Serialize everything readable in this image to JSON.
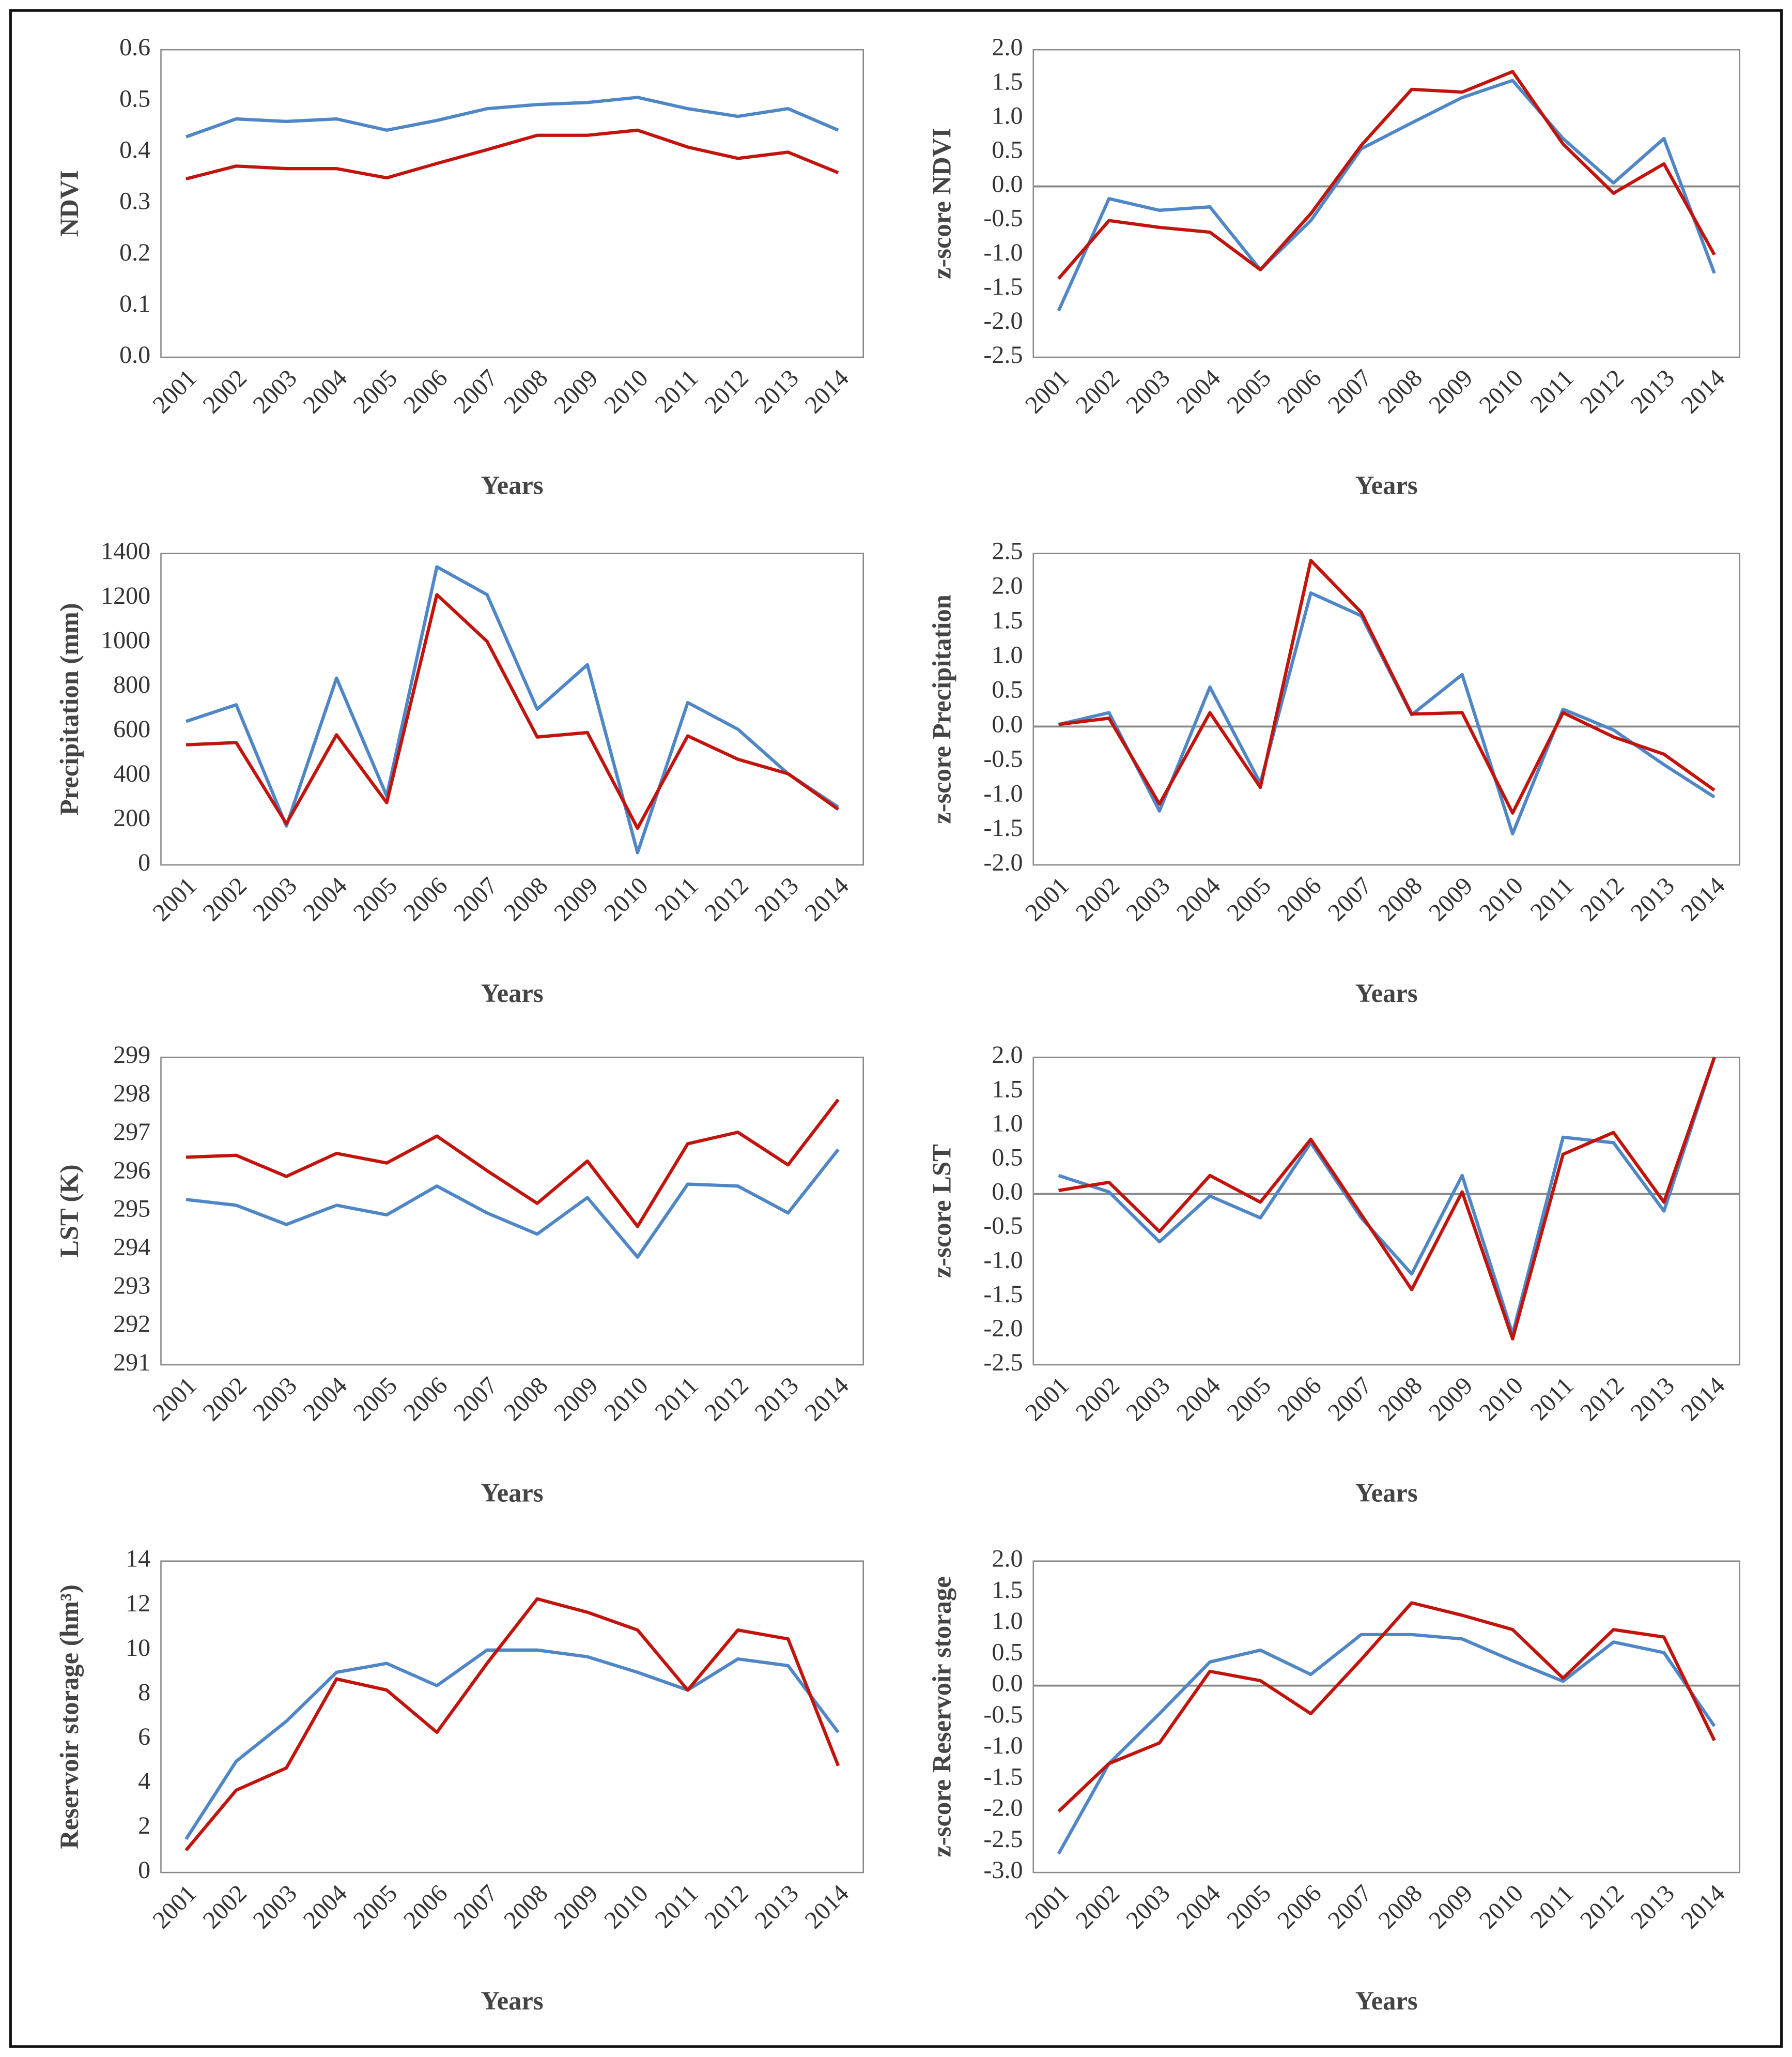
{
  "chart_data": [
    {
      "type": "line",
      "ylabel": "NDVI",
      "xlabel": "Years",
      "categories": [
        "2001",
        "2002",
        "2003",
        "2004",
        "2005",
        "2006",
        "2007",
        "2008",
        "2009",
        "2010",
        "2011",
        "2012",
        "2013",
        "2014"
      ],
      "ylim": [
        0,
        0.6
      ],
      "yticks": [
        {
          "value": 0,
          "label": "0.0"
        },
        0.1,
        0.2,
        0.3,
        0.4,
        0.5,
        0.6
      ],
      "zero_line": false,
      "series": [
        {
          "color": "#4f86c6",
          "values": [
            0.43,
            0.465,
            0.46,
            0.465,
            0.443,
            0.462,
            0.485,
            0.493,
            0.497,
            0.507,
            0.485,
            0.47,
            0.485,
            0.443
          ]
        },
        {
          "color": "#c0140c",
          "values": [
            0.348,
            0.373,
            0.368,
            0.368,
            0.35,
            0.378,
            0.405,
            0.433,
            0.433,
            0.443,
            0.41,
            0.388,
            0.4,
            0.36
          ]
        }
      ]
    },
    {
      "type": "line",
      "ylabel": "z-score NDVI",
      "xlabel": "Years",
      "categories": [
        "2001",
        "2002",
        "2003",
        "2004",
        "2005",
        "2006",
        "2007",
        "2008",
        "2009",
        "2010",
        "2011",
        "2012",
        "2013",
        "2014"
      ],
      "ylim": [
        -2.5,
        2.0
      ],
      "yticks": [
        -2.5,
        {
          "value": -2,
          "label": "-2.0"
        },
        -1.5,
        {
          "value": -1,
          "label": "-1.0"
        },
        -0.5,
        {
          "value": 0,
          "label": "0.0"
        },
        0.5,
        {
          "value": 1,
          "label": "1.0"
        },
        1.5,
        {
          "value": 2,
          "label": "2.0"
        }
      ],
      "zero_line": true,
      "series": [
        {
          "color": "#4f86c6",
          "values": [
            -1.82,
            -0.18,
            -0.35,
            -0.3,
            -1.22,
            -0.5,
            0.55,
            0.93,
            1.3,
            1.55,
            0.7,
            0.05,
            0.7,
            -1.27
          ]
        },
        {
          "color": "#c0140c",
          "values": [
            -1.35,
            -0.5,
            -0.6,
            -0.67,
            -1.22,
            -0.4,
            0.6,
            1.42,
            1.38,
            1.68,
            0.62,
            -0.1,
            0.33,
            -1.0
          ]
        }
      ]
    },
    {
      "type": "line",
      "ylabel": "Precipitation (mm)",
      "xlabel": "Years",
      "categories": [
        "2001",
        "2002",
        "2003",
        "2004",
        "2005",
        "2006",
        "2007",
        "2008",
        "2009",
        "2010",
        "2011",
        "2012",
        "2013",
        "2014"
      ],
      "ylim": [
        0,
        1400
      ],
      "yticks": [
        0,
        200,
        400,
        600,
        800,
        1000,
        1200,
        1400
      ],
      "zero_line": false,
      "series": [
        {
          "color": "#4f86c6",
          "values": [
            645,
            720,
            175,
            840,
            310,
            1340,
            1215,
            700,
            900,
            55,
            730,
            610,
            410,
            260
          ]
        },
        {
          "color": "#c0140c",
          "values": [
            540,
            550,
            185,
            585,
            280,
            1215,
            1005,
            575,
            595,
            165,
            580,
            475,
            410,
            250
          ]
        }
      ]
    },
    {
      "type": "line",
      "ylabel": "z-score Precipitation",
      "xlabel": "Years",
      "categories": [
        "2001",
        "2002",
        "2003",
        "2004",
        "2005",
        "2006",
        "2007",
        "2008",
        "2009",
        "2010",
        "2011",
        "2012",
        "2013",
        "2014"
      ],
      "ylim": [
        -2.0,
        2.5
      ],
      "yticks": [
        {
          "value": -2,
          "label": "-2.0"
        },
        -1.5,
        {
          "value": -1,
          "label": "-1.0"
        },
        -0.5,
        {
          "value": 0,
          "label": "0.0"
        },
        0.5,
        {
          "value": 1,
          "label": "1.0"
        },
        1.5,
        {
          "value": 2,
          "label": "2.0"
        },
        2.5
      ],
      "zero_line": true,
      "series": [
        {
          "color": "#4f86c6",
          "values": [
            0.03,
            0.2,
            -1.22,
            0.57,
            -0.82,
            1.93,
            1.6,
            0.17,
            0.75,
            -1.55,
            0.25,
            -0.05,
            -0.55,
            -1.02
          ]
        },
        {
          "color": "#c0140c",
          "values": [
            0.03,
            0.12,
            -1.12,
            0.2,
            -0.88,
            2.4,
            1.65,
            0.18,
            0.2,
            -1.25,
            0.2,
            -0.15,
            -0.4,
            -0.92
          ]
        }
      ]
    },
    {
      "type": "line",
      "ylabel": "LST (K)",
      "xlabel": "Years",
      "categories": [
        "2001",
        "2002",
        "2003",
        "2004",
        "2005",
        "2006",
        "2007",
        "2008",
        "2009",
        "2010",
        "2011",
        "2012",
        "2013",
        "2014"
      ],
      "ylim": [
        291,
        299
      ],
      "yticks": [
        291,
        292,
        293,
        294,
        295,
        296,
        297,
        298,
        299
      ],
      "zero_line": false,
      "series": [
        {
          "color": "#4f86c6",
          "values": [
            295.3,
            295.15,
            294.65,
            295.15,
            294.9,
            295.65,
            294.95,
            294.4,
            295.35,
            293.8,
            295.7,
            295.65,
            294.95,
            296.6
          ]
        },
        {
          "color": "#c0140c",
          "values": [
            296.4,
            296.45,
            295.9,
            296.5,
            296.25,
            296.95,
            296.05,
            295.2,
            296.3,
            294.6,
            296.75,
            297.05,
            296.2,
            297.9
          ]
        }
      ]
    },
    {
      "type": "line",
      "ylabel": "z-score LST",
      "xlabel": "Years",
      "categories": [
        "2001",
        "2002",
        "2003",
        "2004",
        "2005",
        "2006",
        "2007",
        "2008",
        "2009",
        "2010",
        "2011",
        "2012",
        "2013",
        "2014"
      ],
      "ylim": [
        -2.5,
        2.0
      ],
      "yticks": [
        -2.5,
        {
          "value": -2,
          "label": "-2.0"
        },
        -1.5,
        {
          "value": -1,
          "label": "-1.0"
        },
        -0.5,
        {
          "value": 0,
          "label": "0.0"
        },
        0.5,
        {
          "value": 1,
          "label": "1.0"
        },
        1.5,
        {
          "value": 2,
          "label": "2.0"
        }
      ],
      "zero_line": true,
      "series": [
        {
          "color": "#4f86c6",
          "values": [
            0.27,
            0.03,
            -0.7,
            -0.03,
            -0.35,
            0.75,
            -0.35,
            -1.17,
            0.27,
            -2.05,
            0.83,
            0.75,
            -0.25,
            2.0
          ]
        },
        {
          "color": "#c0140c",
          "values": [
            0.05,
            0.17,
            -0.55,
            0.27,
            -0.12,
            0.8,
            -0.3,
            -1.4,
            0.03,
            -2.12,
            0.58,
            0.9,
            -0.12,
            2.0
          ]
        }
      ]
    },
    {
      "type": "line",
      "ylabel": "Reservoir storage (hm³)",
      "xlabel": "Years",
      "categories": [
        "2001",
        "2002",
        "2003",
        "2004",
        "2005",
        "2006",
        "2007",
        "2008",
        "2009",
        "2010",
        "2011",
        "2012",
        "2013",
        "2014"
      ],
      "ylim": [
        0,
        14
      ],
      "yticks": [
        0,
        2,
        4,
        6,
        8,
        10,
        12,
        14
      ],
      "zero_line": false,
      "series": [
        {
          "color": "#4f86c6",
          "values": [
            1.5,
            5.0,
            6.8,
            9.0,
            9.4,
            8.4,
            10.0,
            10.0,
            9.7,
            9.0,
            8.2,
            9.6,
            9.3,
            6.3
          ]
        },
        {
          "color": "#c0140c",
          "values": [
            1.0,
            3.7,
            4.7,
            8.7,
            8.2,
            6.3,
            9.4,
            12.3,
            11.7,
            10.9,
            8.2,
            10.9,
            10.5,
            4.8
          ]
        }
      ]
    },
    {
      "type": "line",
      "ylabel": "z-score Reservoir storage",
      "xlabel": "Years",
      "categories": [
        "2001",
        "2002",
        "2003",
        "2004",
        "2005",
        "2006",
        "2007",
        "2008",
        "2009",
        "2010",
        "2011",
        "2012",
        "2013",
        "2014"
      ],
      "ylim": [
        -3.0,
        2.0
      ],
      "yticks": [
        {
          "value": -3,
          "label": "-3.0"
        },
        -2.5,
        {
          "value": -2,
          "label": "-2.0"
        },
        -1.5,
        {
          "value": -1,
          "label": "-1.0"
        },
        -0.5,
        {
          "value": 0,
          "label": "0.0"
        },
        0.5,
        {
          "value": 1,
          "label": "1.0"
        },
        1.5,
        {
          "value": 2,
          "label": "2.0"
        }
      ],
      "zero_line": true,
      "series": [
        {
          "color": "#4f86c6",
          "values": [
            -2.7,
            -1.25,
            -0.45,
            0.38,
            0.57,
            0.18,
            0.82,
            0.82,
            0.75,
            0.4,
            0.07,
            0.7,
            0.53,
            -0.65
          ]
        },
        {
          "color": "#c0140c",
          "values": [
            -2.02,
            -1.25,
            -0.92,
            0.23,
            0.08,
            -0.45,
            0.42,
            1.33,
            1.13,
            0.9,
            0.12,
            0.9,
            0.78,
            -0.88
          ]
        }
      ]
    }
  ]
}
